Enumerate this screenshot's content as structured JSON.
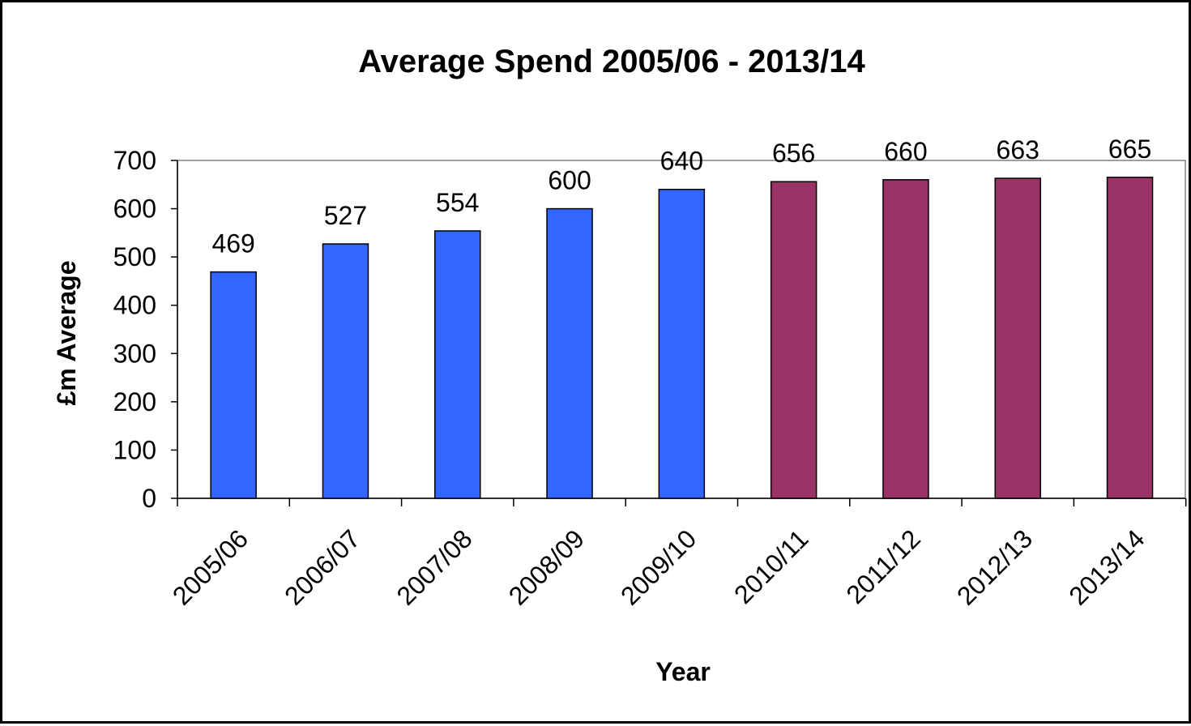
{
  "chart_data": {
    "type": "bar",
    "title": "Average Spend 2005/06 - 2013/14",
    "xlabel": "Year",
    "ylabel": "£m Average",
    "ylim": [
      0,
      700
    ],
    "yticks": [
      0,
      100,
      200,
      300,
      400,
      500,
      600,
      700
    ],
    "categories": [
      "2005/06",
      "2006/07",
      "2007/08",
      "2008/09",
      "2009/10",
      "2010/11",
      "2011/12",
      "2012/13",
      "2013/14"
    ],
    "values": [
      469,
      527,
      554,
      600,
      640,
      656,
      660,
      663,
      665
    ],
    "bar_colors": [
      "#3366FF",
      "#3366FF",
      "#3366FF",
      "#3366FF",
      "#3366FF",
      "#993366",
      "#993366",
      "#993366",
      "#993366"
    ],
    "data_labels": true,
    "grid": false,
    "legend": "none"
  }
}
